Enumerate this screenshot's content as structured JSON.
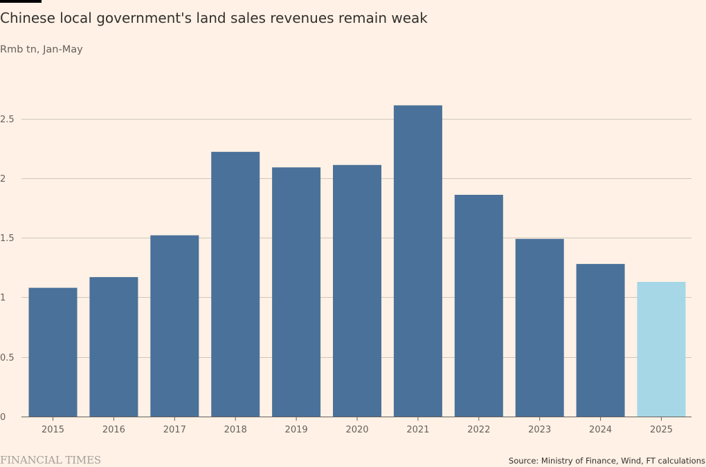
{
  "header": {
    "title": "Chinese local government's land sales revenues remain weak",
    "subtitle": "Rmb tn, Jan-May"
  },
  "chart_data": {
    "type": "bar",
    "title": "Chinese local government's land sales revenues remain weak",
    "subtitle": "Rmb tn, Jan-May",
    "categories": [
      "2015",
      "2016",
      "2017",
      "2018",
      "2019",
      "2020",
      "2021",
      "2022",
      "2023",
      "2024",
      "2025"
    ],
    "values": [
      1.08,
      1.17,
      1.52,
      2.22,
      2.09,
      2.11,
      2.61,
      1.86,
      1.49,
      1.28,
      1.13
    ],
    "ylim": [
      0,
      2.5
    ],
    "yticks": [
      0,
      0.5,
      1,
      1.5,
      2,
      2.5
    ],
    "ytick_labels": [
      "0",
      "0.5",
      "1",
      "1.5",
      "2",
      "2.5"
    ],
    "grid": true,
    "colors": {
      "bar": "#4A7199",
      "highlight": "#A5D7E6",
      "grid": "#CEC6B9",
      "axis": "#66605C",
      "text": "#33302E"
    },
    "highlight_category": "2025"
  },
  "footer": {
    "logo_text": "FINANCIAL TIMES",
    "source": "Source: Ministry of Finance, Wind, FT calculations"
  }
}
